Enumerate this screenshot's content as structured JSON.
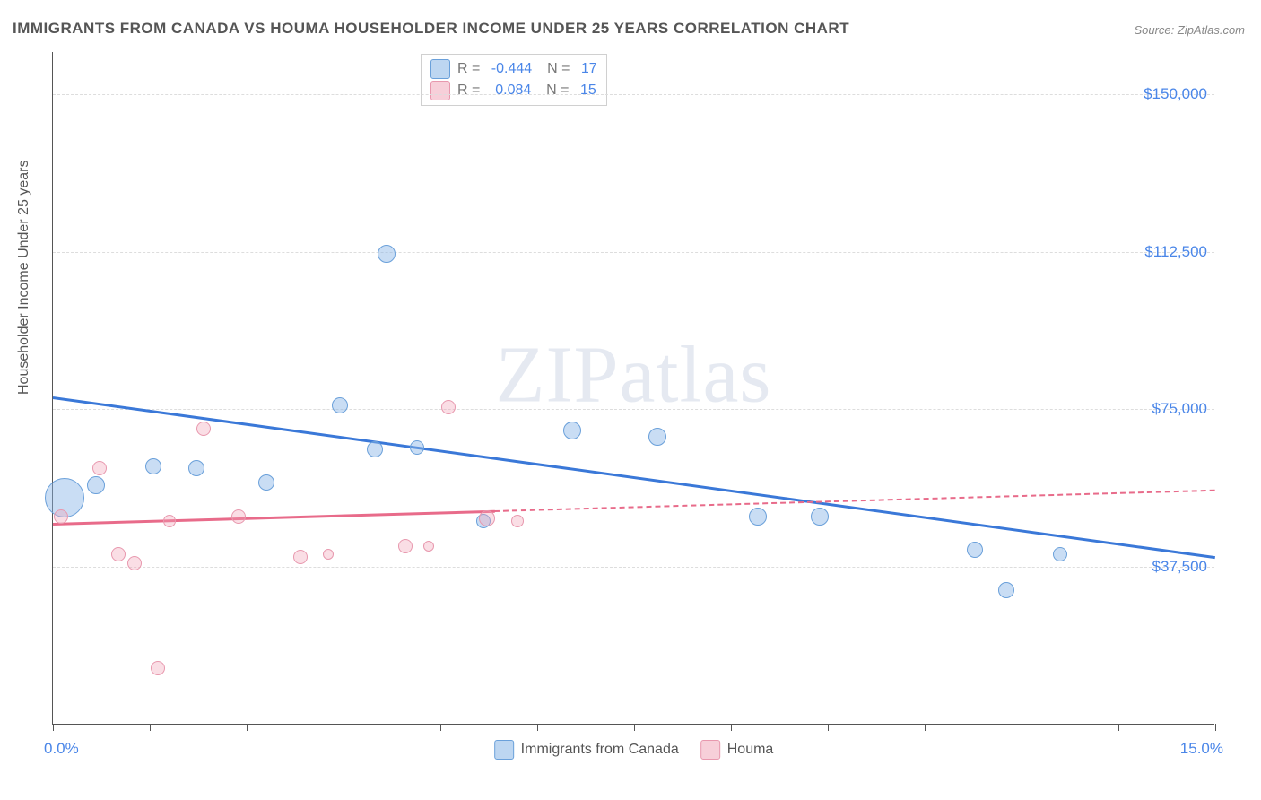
{
  "title": "IMMIGRANTS FROM CANADA VS HOUMA HOUSEHOLDER INCOME UNDER 25 YEARS CORRELATION CHART",
  "source": "Source: ZipAtlas.com",
  "y_axis_title": "Householder Income Under 25 years",
  "watermark": "ZIPatlas",
  "chart": {
    "type": "scatter",
    "xlim": [
      0,
      15
    ],
    "ylim": [
      0,
      160000
    ],
    "x_min_label": "0.0%",
    "x_max_label": "15.0%",
    "y_ticks": [
      37500,
      75000,
      112500,
      150000
    ],
    "y_tick_labels": [
      "$37,500",
      "$75,000",
      "$112,500",
      "$150,000"
    ],
    "x_ticks_pct": [
      0,
      1.25,
      2.5,
      3.75,
      5.0,
      6.25,
      7.5,
      8.75,
      10.0,
      11.25,
      12.5,
      13.75,
      15.0
    ],
    "background_color": "#ffffff",
    "grid_color": "#dddddd",
    "axis_color": "#555555",
    "value_color": "#4a86e8"
  },
  "series": [
    {
      "name": "Immigrants from Canada",
      "color_fill": "rgba(135,180,230,0.45)",
      "color_stroke": "#6aa0da",
      "R": "-0.444",
      "N": "17",
      "trend": {
        "x1": 0,
        "y1": 78000,
        "x2": 15,
        "y2": 40000,
        "solid_until_x": 15
      },
      "points": [
        {
          "x": 0.15,
          "y": 54000,
          "r": 22
        },
        {
          "x": 0.55,
          "y": 57000,
          "r": 10
        },
        {
          "x": 1.3,
          "y": 61500,
          "r": 9
        },
        {
          "x": 1.85,
          "y": 61000,
          "r": 9
        },
        {
          "x": 2.75,
          "y": 57500,
          "r": 9
        },
        {
          "x": 3.7,
          "y": 76000,
          "r": 9
        },
        {
          "x": 4.15,
          "y": 65500,
          "r": 9
        },
        {
          "x": 4.3,
          "y": 112000,
          "r": 10
        },
        {
          "x": 4.7,
          "y": 66000,
          "r": 8
        },
        {
          "x": 5.55,
          "y": 48500,
          "r": 8
        },
        {
          "x": 6.7,
          "y": 70000,
          "r": 10
        },
        {
          "x": 7.8,
          "y": 68500,
          "r": 10
        },
        {
          "x": 9.1,
          "y": 49500,
          "r": 10
        },
        {
          "x": 9.9,
          "y": 49500,
          "r": 10
        },
        {
          "x": 11.9,
          "y": 41500,
          "r": 9
        },
        {
          "x": 12.3,
          "y": 32000,
          "r": 9
        },
        {
          "x": 13.0,
          "y": 40500,
          "r": 8
        }
      ]
    },
    {
      "name": "Houma",
      "color_fill": "rgba(240,160,180,0.35)",
      "color_stroke": "#e898ae",
      "R": "0.084",
      "N": "15",
      "trend": {
        "x1": 0,
        "y1": 48000,
        "x2": 15,
        "y2": 56000,
        "solid_until_x": 5.7
      },
      "points": [
        {
          "x": 0.1,
          "y": 49500,
          "r": 8
        },
        {
          "x": 0.6,
          "y": 61000,
          "r": 8
        },
        {
          "x": 0.85,
          "y": 40500,
          "r": 8
        },
        {
          "x": 1.05,
          "y": 38500,
          "r": 8
        },
        {
          "x": 1.5,
          "y": 48500,
          "r": 7
        },
        {
          "x": 1.95,
          "y": 70500,
          "r": 8
        },
        {
          "x": 2.4,
          "y": 49500,
          "r": 8
        },
        {
          "x": 3.2,
          "y": 40000,
          "r": 8
        },
        {
          "x": 3.55,
          "y": 40500,
          "r": 6
        },
        {
          "x": 4.55,
          "y": 42500,
          "r": 8
        },
        {
          "x": 4.85,
          "y": 42500,
          "r": 6
        },
        {
          "x": 5.1,
          "y": 75500,
          "r": 8
        },
        {
          "x": 5.6,
          "y": 49000,
          "r": 9
        },
        {
          "x": 6.0,
          "y": 48500,
          "r": 7
        },
        {
          "x": 1.35,
          "y": 13500,
          "r": 8
        }
      ]
    }
  ],
  "legend_bottom": [
    {
      "swatch": "blue",
      "label": "Immigrants from Canada"
    },
    {
      "swatch": "pink",
      "label": "Houma"
    }
  ]
}
